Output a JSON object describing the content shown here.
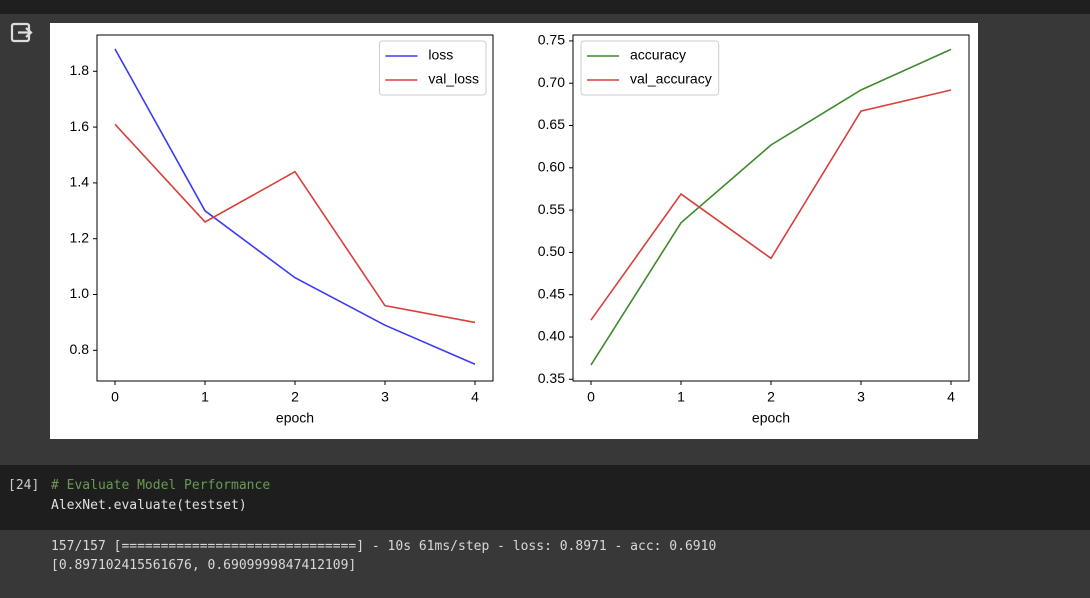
{
  "chart_data": [
    {
      "type": "line",
      "x": [
        0,
        1,
        2,
        3,
        4
      ],
      "xlabel": "epoch",
      "xlim": [
        -0.2,
        4.2
      ],
      "xticks": [
        0,
        1,
        2,
        3,
        4
      ],
      "ylim": [
        0.69,
        1.93
      ],
      "yticks": [
        0.8,
        {
          "value": 1,
          "label": "1.0"
        },
        1.2,
        1.4,
        1.6,
        1.8
      ],
      "legend": "upper right",
      "grid": false,
      "series": [
        {
          "name": "loss",
          "color": "#3b3bf5",
          "values": [
            1.88,
            1.3,
            1.06,
            0.89,
            0.75
          ]
        },
        {
          "name": "val_loss",
          "color": "#d9403a",
          "values": [
            1.61,
            1.26,
            1.44,
            0.96,
            0.9
          ]
        }
      ]
    },
    {
      "type": "line",
      "x": [
        0,
        1,
        2,
        3,
        4
      ],
      "xlabel": "epoch",
      "xlim": [
        -0.2,
        4.2
      ],
      "xticks": [
        0,
        1,
        2,
        3,
        4
      ],
      "ylim": [
        0.348,
        0.757
      ],
      "yticks": [
        0.35,
        {
          "value": 0.4,
          "label": "0.40"
        },
        0.45,
        {
          "value": 0.5,
          "label": "0.50"
        },
        0.55,
        {
          "value": 0.6,
          "label": "0.60"
        },
        0.65,
        {
          "value": 0.7,
          "label": "0.70"
        },
        0.75
      ],
      "legend": "upper left",
      "grid": false,
      "series": [
        {
          "name": "accuracy",
          "color": "#3f8a2d",
          "values": [
            0.367,
            0.535,
            0.627,
            0.692,
            0.74
          ]
        },
        {
          "name": "val_accuracy",
          "color": "#d9403a",
          "values": [
            0.42,
            0.569,
            0.493,
            0.667,
            0.692
          ]
        }
      ]
    }
  ],
  "cell": {
    "prompt": "[24]",
    "code": [
      "# Evaluate Model Performance",
      "AlexNet.evaluate(testset)"
    ]
  },
  "output": {
    "lines": [
      "157/157 [==============================] - 10s 61ms/step - loss: 0.8971 - acc: 0.6910",
      "[0.897102415561676, 0.6909999847412109]"
    ]
  }
}
